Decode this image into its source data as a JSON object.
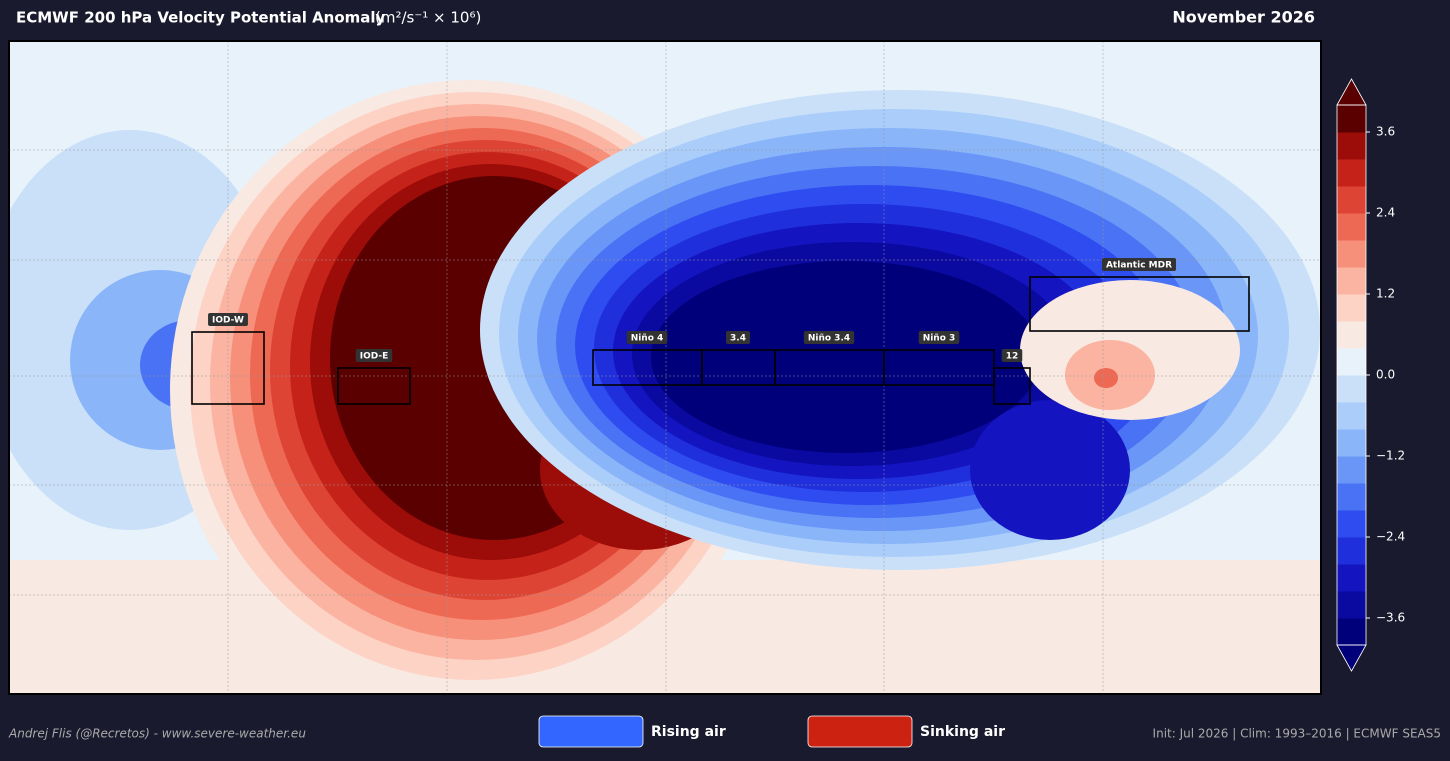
{
  "header": {
    "title": "ECMWF 200 hPa Velocity Potential Anomaly",
    "units": "(m²/s⁻¹ × 10⁶)",
    "date": "November 2026"
  },
  "regions": [
    "IOD-W",
    "IOD-E",
    "Niño 4",
    "3.4",
    "Niño 3.4",
    "Niño 3",
    "12",
    "Atlantic MDR"
  ],
  "colorbar": {
    "lim": [
      -4,
      4
    ],
    "ticks": [
      {
        "value": -3.6,
        "label": "−3.6"
      },
      {
        "value": -2.4,
        "label": "−2.4"
      },
      {
        "value": -1.2,
        "label": "−1.2"
      },
      {
        "value": 0,
        "label": "0.0"
      },
      1.2,
      2.4,
      3.6
    ],
    "colors": [
      "#00007a",
      "#0a0aa0",
      "#1414c0",
      "#1f2fdc",
      "#2f4cf0",
      "#4a72f5",
      "#6a97f7",
      "#8bb5f9",
      "#aacdfa",
      "#c9e0f8",
      "#e8f2fa",
      "#f9e9e3",
      "#fcd3c5",
      "#fbb4a1",
      "#f6907a",
      "#ee6954",
      "#de4434",
      "#c52219",
      "#9c0c08",
      "#5a0000"
    ]
  },
  "legend": [
    {
      "label": "Rising air",
      "color": "#3366ff"
    },
    {
      "label": "Sinking air",
      "color": "#cc2211"
    }
  ],
  "footer": {
    "credit": "Andrej Flis (@Recretos) - www.severe-weather.eu",
    "info": "Init: Jul 2026  |  Clim: 1993–2016  |  ECMWF SEAS5"
  }
}
